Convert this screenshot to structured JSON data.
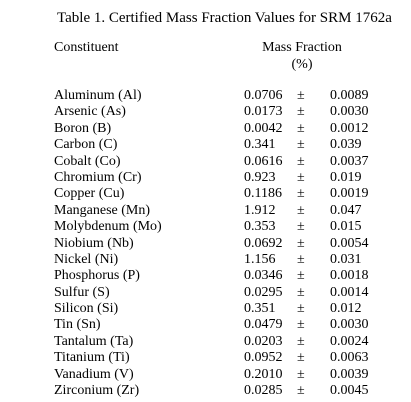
{
  "table": {
    "title": "Table 1.  Certified Mass Fraction Values for SRM 1762a",
    "header_constituent": "Constituent",
    "header_mass_fraction": "Mass Fraction",
    "header_unit": "(%)",
    "pm_symbol": "±",
    "rows": [
      {
        "constituent": "Aluminum (Al)",
        "value": "0.0706",
        "uncertainty": "0.0089"
      },
      {
        "constituent": "Arsenic (As)",
        "value": "0.0173",
        "uncertainty": "0.0030"
      },
      {
        "constituent": "Boron (B)",
        "value": "0.0042",
        "uncertainty": "0.0012"
      },
      {
        "constituent": "Carbon (C)",
        "value": "0.341",
        "uncertainty": "0.039"
      },
      {
        "constituent": "Cobalt (Co)",
        "value": "0.0616",
        "uncertainty": "0.0037"
      },
      {
        "constituent": "Chromium (Cr)",
        "value": "0.923",
        "uncertainty": "0.019"
      },
      {
        "constituent": "Copper (Cu)",
        "value": "0.1186",
        "uncertainty": "0.0019"
      },
      {
        "constituent": "Manganese (Mn)",
        "value": "1.912",
        "uncertainty": "0.047"
      },
      {
        "constituent": "Molybdenum (Mo)",
        "value": "0.353",
        "uncertainty": "0.015"
      },
      {
        "constituent": "Niobium (Nb)",
        "value": "0.0692",
        "uncertainty": "0.0054"
      },
      {
        "constituent": "Nickel (Ni)",
        "value": "1.156",
        "uncertainty": "0.031"
      },
      {
        "constituent": "Phosphorus (P)",
        "value": "0.0346",
        "uncertainty": "0.0018"
      },
      {
        "constituent": "Sulfur (S)",
        "value": "0.0295",
        "uncertainty": "0.0014"
      },
      {
        "constituent": "Silicon (Si)",
        "value": "0.351",
        "uncertainty": "0.012"
      },
      {
        "constituent": "Tin (Sn)",
        "value": "0.0479",
        "uncertainty": "0.0030"
      },
      {
        "constituent": "Tantalum (Ta)",
        "value": "0.0203",
        "uncertainty": "0.0024"
      },
      {
        "constituent": "Titanium (Ti)",
        "value": "0.0952",
        "uncertainty": "0.0063"
      },
      {
        "constituent": "Vanadium (V)",
        "value": "0.2010",
        "uncertainty": "0.0039"
      },
      {
        "constituent": "Zirconium (Zr)",
        "value": "0.0285",
        "uncertainty": "0.0045"
      }
    ]
  }
}
